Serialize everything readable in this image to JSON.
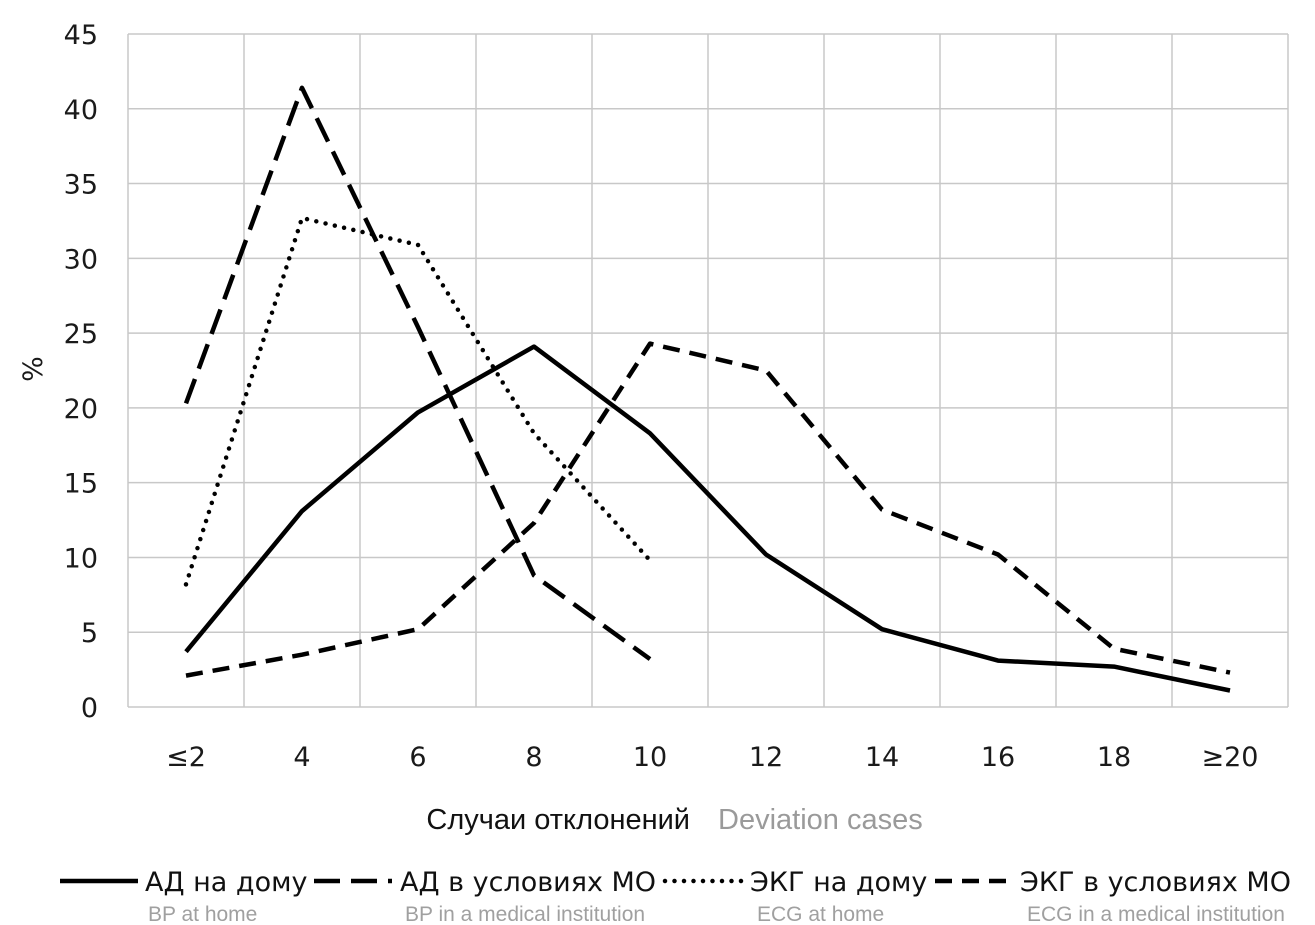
{
  "chart_data": {
    "type": "line",
    "ylabel": "%",
    "xlabel": "Случаи отклонений",
    "xlabel_en": "Deviation cases",
    "categories": [
      "≤2",
      "4",
      "6",
      "8",
      "10",
      "12",
      "14",
      "16",
      "18",
      "≥20"
    ],
    "ylim": [
      0,
      45
    ],
    "yticks": [
      "0",
      "5",
      "10",
      "15",
      "20",
      "25",
      "30",
      "35",
      "40",
      "45"
    ],
    "grid": true,
    "legend_position": "bottom",
    "series": [
      {
        "name": "АД на дому",
        "name_en": "BP at home",
        "style": "solid",
        "color": "#000000",
        "values": [
          3.7,
          13.1,
          19.7,
          24.1,
          18.3,
          10.2,
          5.2,
          3.1,
          2.7,
          1.1
        ]
      },
      {
        "name": "АД в условиях МО",
        "name_en": "BP in a medical institution",
        "style": "dashed",
        "color": "#000000",
        "values": [
          20.3,
          41.4,
          25.4,
          8.8,
          3.2,
          null,
          null,
          null,
          null,
          null
        ]
      },
      {
        "name": "ЭКГ на дому",
        "name_en": "ECG at home",
        "style": "dotted",
        "color": "#000000",
        "values": [
          8.2,
          32.7,
          30.9,
          18.3,
          9.8,
          null,
          null,
          null,
          null,
          null
        ]
      },
      {
        "name": "ЭКГ в условиях МО",
        "name_en": "ECG in a medical institution",
        "style": "short-dashed",
        "color": "#000000",
        "values": [
          2.1,
          3.5,
          5.2,
          12.3,
          24.3,
          22.5,
          13.2,
          10.2,
          3.9,
          2.3
        ]
      }
    ]
  }
}
